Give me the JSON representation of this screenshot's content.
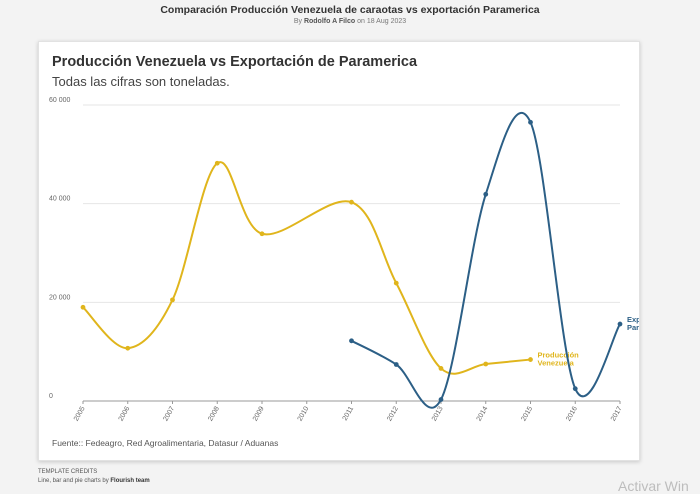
{
  "page": {
    "title": "Comparación Producción Venezuela de caraotas vs exportación Paramerica",
    "byline_prefix": "By",
    "byline_author": "Rodolfo A Filco",
    "byline_suffix": "on 18 Aug 2023"
  },
  "footer": {
    "credits_heading": "TEMPLATE CREDITS",
    "credits_text": "Line, bar and pie charts by",
    "credits_team": "Flourish team",
    "watermark": "Activar Win"
  },
  "chart_data": {
    "type": "line",
    "title": "Producción Venezuela vs Exportación de Paramerica",
    "subtitle": "Todas las cifras son toneladas.",
    "source": "Fuente:: Fedeagro, Red Agroalimentaria, Datasur / Aduanas",
    "x": [
      "2005",
      "2006",
      "2007",
      "2008",
      "2009",
      "2010",
      "2011",
      "2012",
      "2013",
      "2014",
      "2015",
      "2016",
      "2017"
    ],
    "ylim": [
      0,
      60000
    ],
    "yticks": [
      0,
      20000,
      40000,
      60000
    ],
    "ytick_labels": [
      "0",
      "20 000",
      "40 000",
      "60 000"
    ],
    "grid": true,
    "series": [
      {
        "name": "Producción Venezuela",
        "label_lines": [
          "Producción",
          "Venezuela"
        ],
        "color": "#e0b51c",
        "points": [
          {
            "x": "2005",
            "y": 19000
          },
          {
            "x": "2006",
            "y": 10700
          },
          {
            "x": "2007",
            "y": 20500
          },
          {
            "x": "2008",
            "y": 48200
          },
          {
            "x": "2009",
            "y": 33900
          },
          {
            "x": "2011",
            "y": 40300
          },
          {
            "x": "2012",
            "y": 23900
          },
          {
            "x": "2013",
            "y": 6600
          },
          {
            "x": "2014",
            "y": 7500
          },
          {
            "x": "2015",
            "y": 8400
          }
        ]
      },
      {
        "name": "Exportación Paramerica",
        "label_lines": [
          "Exportación",
          "Paramerica"
        ],
        "color": "#2c5f86",
        "points": [
          {
            "x": "2011",
            "y": 12200
          },
          {
            "x": "2012",
            "y": 7400
          },
          {
            "x": "2013",
            "y": 300
          },
          {
            "x": "2014",
            "y": 41900
          },
          {
            "x": "2015",
            "y": 56500
          },
          {
            "x": "2016",
            "y": 2500
          },
          {
            "x": "2017",
            "y": 15600
          }
        ]
      }
    ]
  }
}
